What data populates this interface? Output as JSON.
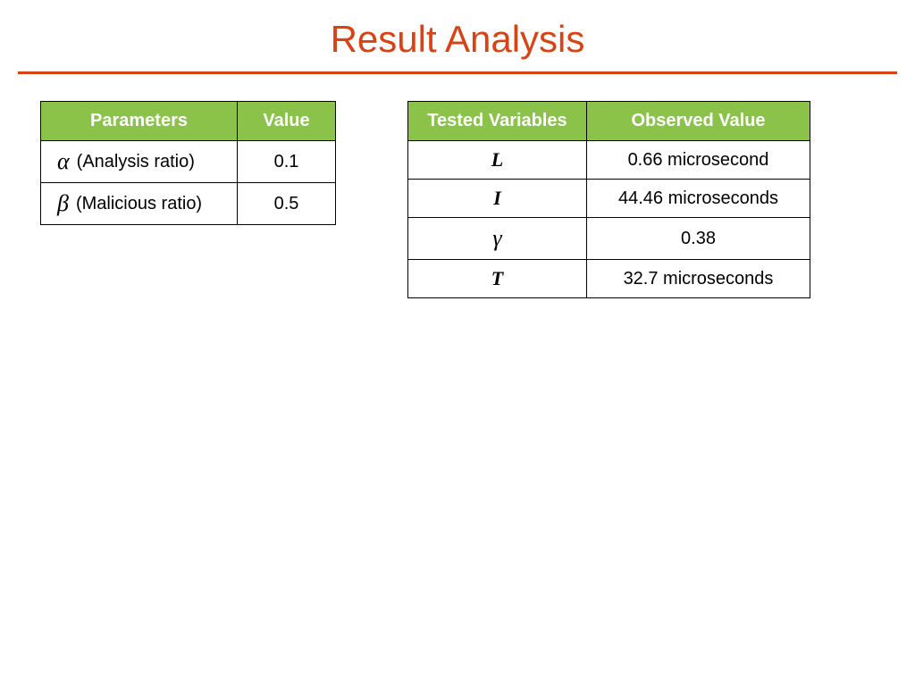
{
  "title": {
    "text": "Result Analysis",
    "color": "#d84315",
    "fontsize": 42
  },
  "divider": {
    "color": "#d84315",
    "thickness": 3
  },
  "table1": {
    "header_bg": "#8bc34a",
    "header_text_color": "#ffffff",
    "border_color": "#000000",
    "columns": [
      "Parameters",
      "Value"
    ],
    "rows": [
      {
        "symbol": "α",
        "desc": "(Analysis ratio)",
        "value": "0.1"
      },
      {
        "symbol": "β",
        "desc": "(Malicious ratio)",
        "value": "0.5"
      }
    ]
  },
  "table2": {
    "header_bg": "#8bc34a",
    "header_text_color": "#ffffff",
    "border_color": "#000000",
    "columns": [
      "Tested Variables",
      "Observed Value"
    ],
    "rows": [
      {
        "variable": "L",
        "is_greek": false,
        "value": "0.66 microsecond"
      },
      {
        "variable": "I",
        "is_greek": false,
        "value": "44.46 microseconds"
      },
      {
        "variable": "γ",
        "is_greek": true,
        "value": "0.38"
      },
      {
        "variable": "T",
        "is_greek": false,
        "value": "32.7 microseconds"
      }
    ]
  }
}
